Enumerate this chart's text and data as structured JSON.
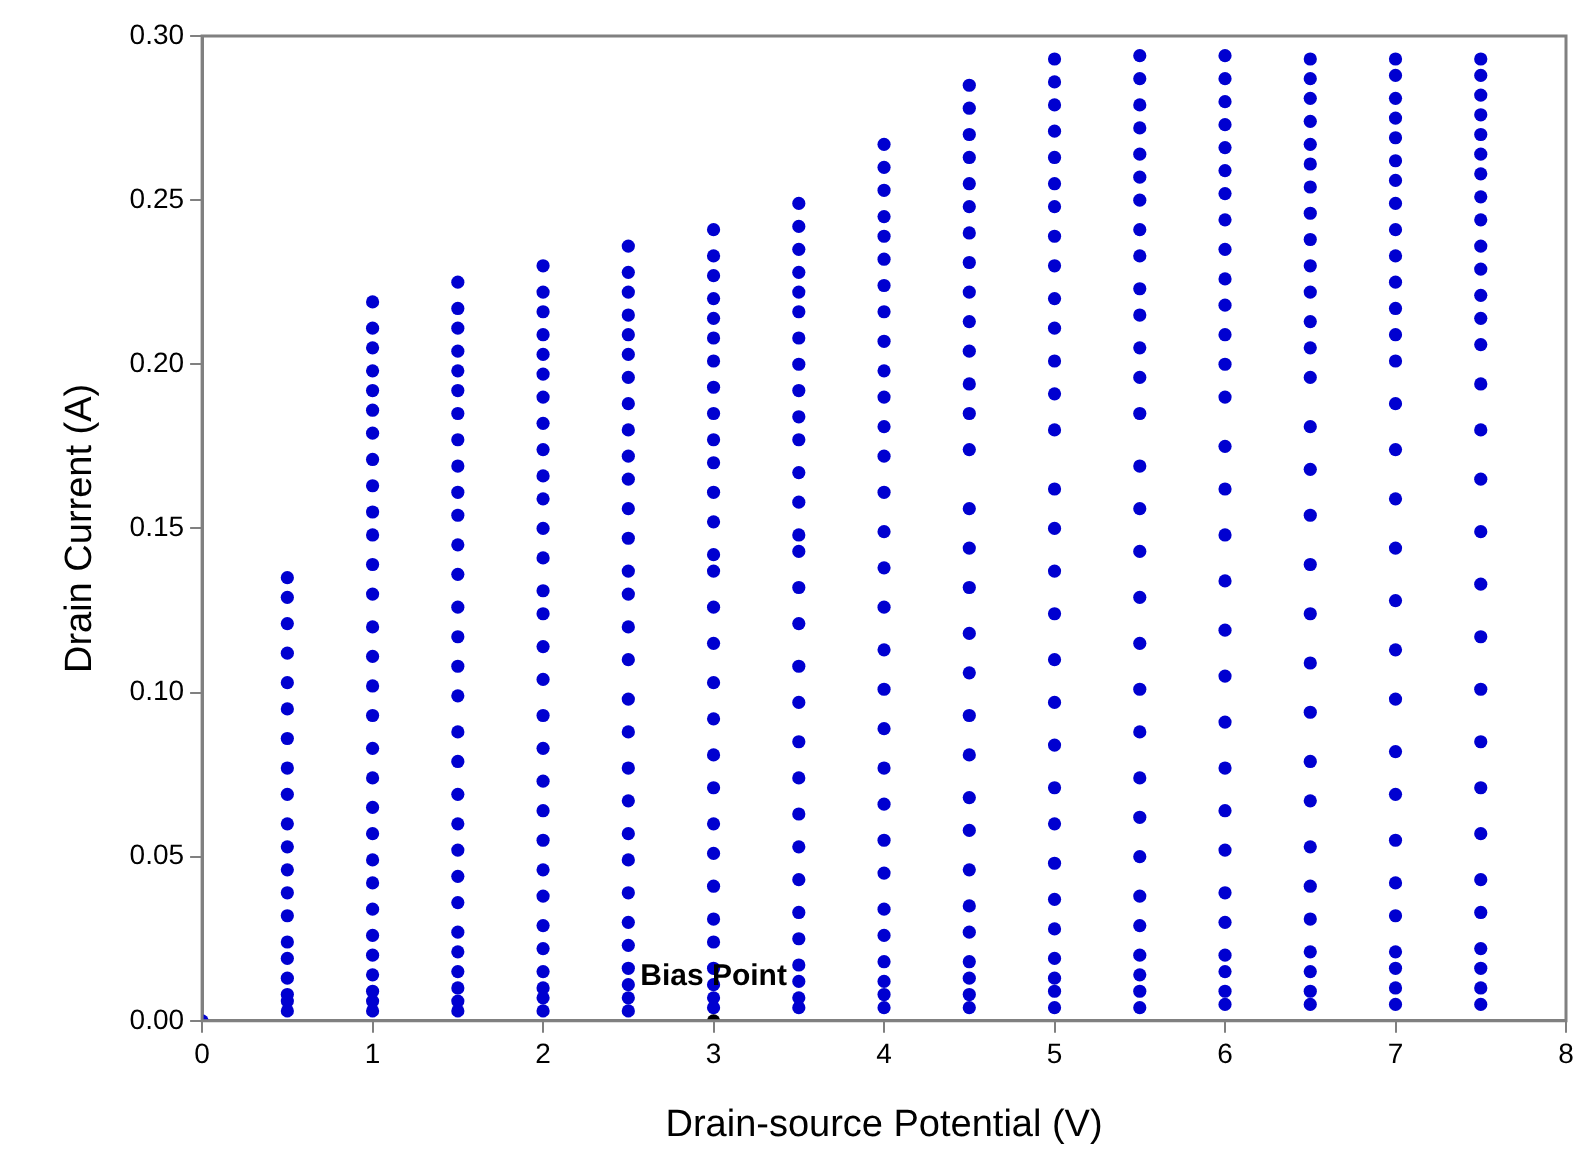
{
  "chart_data": {
    "type": "scatter",
    "xlabel": "Drain-source Potential (V)",
    "ylabel": "Drain Current (A)",
    "marker": "circle",
    "xlim": [
      0,
      8
    ],
    "xticks": [
      0,
      1,
      2,
      3,
      4,
      5,
      6,
      7,
      8
    ],
    "ylim": [
      0,
      0.3
    ],
    "yticks": [
      {
        "value": 0,
        "label": "0.00"
      },
      {
        "value": 0.05,
        "label": "0.05"
      },
      {
        "value": 0.1,
        "label": "0.10"
      },
      {
        "value": 0.15,
        "label": "0.15"
      },
      {
        "value": 0.2,
        "label": "0.20"
      },
      {
        "value": 0.25,
        "label": "0.25"
      },
      {
        "value": 0.3,
        "label": "0.30"
      }
    ],
    "annotations": [
      {
        "text": "Bias Point",
        "x": 3,
        "y": 0
      }
    ],
    "x": [
      0.5,
      1,
      1.5,
      2,
      2.5,
      3,
      3.5,
      4,
      4.5,
      5,
      5.5,
      6,
      6.5,
      7,
      7.5
    ],
    "series": [
      {
        "color": "#0000d0",
        "x": [
          0,
          0.5,
          1,
          1.5,
          2,
          2.5,
          3,
          3.5,
          4,
          4.5,
          5,
          5.5,
          6,
          6.5,
          7,
          7.5
        ],
        "values": [
          0,
          0.003,
          0.003,
          0.003,
          0.003,
          0.003,
          0.004,
          0.004,
          0.004,
          0.004,
          0.004,
          0.004,
          0.005,
          0.005,
          0.005,
          0.005
        ]
      },
      {
        "color": "#0000d0",
        "values": [
          0.006,
          0.006,
          0.006,
          0.007,
          0.007,
          0.007,
          0.007,
          0.008,
          0.008,
          0.009,
          0.009,
          0.009,
          0.009,
          0.01,
          0.01
        ]
      },
      {
        "color": "#0000d0",
        "values": [
          0.008,
          0.009,
          0.01,
          0.01,
          0.011,
          0.011,
          0.012,
          0.012,
          0.013,
          0.013,
          0.014,
          0.015,
          0.015,
          0.016,
          0.016
        ]
      },
      {
        "color": "#0000d0",
        "values": [
          0.013,
          0.014,
          0.015,
          0.015,
          0.016,
          0.016,
          0.017,
          0.018,
          0.018,
          0.019,
          0.02,
          0.02,
          0.021,
          0.021,
          0.022
        ]
      },
      {
        "color": "#0000d0",
        "values": [
          0.019,
          0.02,
          0.021,
          0.022,
          0.023,
          0.024,
          0.025,
          0.026,
          0.027,
          0.028,
          0.029,
          0.03,
          0.031,
          0.032,
          0.033
        ]
      },
      {
        "color": "#0000d0",
        "values": [
          0.024,
          0.026,
          0.027,
          0.029,
          0.03,
          0.031,
          0.033,
          0.034,
          0.035,
          0.037,
          0.038,
          0.039,
          0.041,
          0.042,
          0.043
        ]
      },
      {
        "color": "#0000d0",
        "values": [
          0.032,
          0.034,
          0.036,
          0.038,
          0.039,
          0.041,
          0.043,
          0.045,
          0.046,
          0.048,
          0.05,
          0.052,
          0.053,
          0.055,
          0.057
        ]
      },
      {
        "color": "#0000d0",
        "values": [
          0.039,
          0.042,
          0.044,
          0.046,
          0.049,
          0.051,
          0.053,
          0.055,
          0.058,
          0.06,
          0.062,
          0.064,
          0.067,
          0.069,
          0.071
        ]
      },
      {
        "color": "#0000d0",
        "values": [
          0.046,
          0.049,
          0.052,
          0.055,
          0.057,
          0.06,
          0.063,
          0.066,
          0.068,
          0.071,
          0.074,
          0.077,
          0.079,
          0.082,
          0.085
        ]
      },
      {
        "color": "#0000d0",
        "values": [
          0.053,
          0.057,
          0.06,
          0.064,
          0.067,
          0.071,
          0.074,
          0.077,
          0.081,
          0.084,
          0.088,
          0.091,
          0.094,
          0.098,
          0.101
        ]
      },
      {
        "color": "#0000d0",
        "values": [
          0.06,
          0.065,
          0.069,
          0.073,
          0.077,
          0.081,
          0.085,
          0.089,
          0.093,
          0.097,
          0.101,
          0.105,
          0.109,
          0.113,
          0.117
        ]
      },
      {
        "color": "#0000d0",
        "values": [
          0.069,
          0.074,
          0.079,
          0.083,
          0.088,
          0.092,
          0.097,
          0.101,
          0.106,
          0.11,
          0.115,
          0.119,
          0.124,
          0.128,
          0.133
        ]
      },
      {
        "color": "#0000d0",
        "values": [
          0.077,
          0.083,
          0.088,
          0.093,
          0.098,
          0.103,
          0.108,
          0.113,
          0.118,
          0.124,
          0.129,
          0.134,
          0.139,
          0.144,
          0.149
        ]
      },
      {
        "color": "#0000d0",
        "values": [
          0.086,
          0.093,
          0.099,
          0.104,
          0.11,
          0.115,
          0.121,
          0.126,
          0.132,
          0.137,
          0.143,
          0.148,
          0.154,
          0.159,
          0.165
        ]
      },
      {
        "color": "#0000d0",
        "values": [
          0.095,
          0.102,
          0.108,
          0.114,
          0.12,
          0.126,
          0.132,
          0.138,
          0.144,
          0.15,
          0.156,
          0.162,
          0.168,
          0.174,
          0.18
        ]
      },
      {
        "color": "#0000d0",
        "values": [
          0.103,
          0.111,
          0.117,
          0.124,
          0.13,
          0.137,
          0.143,
          0.149,
          0.156,
          0.162,
          0.169,
          0.175,
          0.181,
          0.188,
          0.194
        ]
      },
      {
        "color": "#0000d0",
        "values": [
          0.112,
          0.12,
          0.126,
          0.131,
          0.137,
          0.142,
          0.148,
          0.161,
          0.174,
          0.18,
          0.185,
          0.19,
          0.196,
          0.201,
          0.206
        ]
      },
      {
        "color": "#0000d0",
        "values": [
          0.121,
          0.13,
          0.136,
          0.141,
          0.147,
          0.152,
          0.158,
          0.172,
          0.185,
          0.191,
          0.196,
          0.2,
          0.205,
          0.209,
          0.214
        ]
      },
      {
        "color": "#0000d0",
        "values": [
          0.129,
          0.139,
          0.145,
          0.15,
          0.156,
          0.161,
          0.167,
          0.181,
          0.194,
          0.201,
          0.205,
          0.209,
          0.213,
          0.217,
          0.221
        ]
      },
      {
        "color": "#0000d0",
        "values": [
          0.135,
          0.148,
          0.154,
          0.159,
          0.165,
          0.17,
          0.177,
          0.19,
          0.204,
          0.211,
          0.215,
          0.218,
          0.222,
          0.225,
          0.229
        ]
      },
      {
        "color": "#0000d0",
        "values": [
          null,
          0.155,
          0.161,
          0.166,
          0.172,
          0.177,
          0.184,
          0.198,
          0.213,
          0.22,
          0.223,
          0.226,
          0.23,
          0.233,
          0.236
        ]
      },
      {
        "color": "#0000d0",
        "values": [
          null,
          0.163,
          0.169,
          0.174,
          0.18,
          0.185,
          0.192,
          0.207,
          0.222,
          0.23,
          0.233,
          0.235,
          0.238,
          0.241,
          0.244
        ]
      },
      {
        "color": "#0000d0",
        "values": [
          null,
          0.171,
          0.177,
          0.182,
          0.188,
          0.193,
          0.2,
          0.216,
          0.231,
          0.239,
          0.241,
          0.244,
          0.246,
          0.249,
          0.251
        ]
      },
      {
        "color": "#0000d0",
        "values": [
          null,
          0.179,
          0.185,
          0.19,
          0.196,
          0.201,
          0.208,
          0.224,
          0.24,
          0.248,
          0.25,
          0.252,
          0.254,
          0.256,
          0.258
        ]
      },
      {
        "color": "#0000d0",
        "values": [
          null,
          0.186,
          0.192,
          0.197,
          0.203,
          0.208,
          0.216,
          0.232,
          0.248,
          0.255,
          0.257,
          0.259,
          0.261,
          0.262,
          0.264
        ]
      },
      {
        "color": "#0000d0",
        "values": [
          null,
          0.192,
          0.198,
          0.203,
          0.209,
          0.214,
          0.222,
          0.239,
          0.255,
          0.263,
          0.264,
          0.266,
          0.267,
          0.269,
          0.27
        ]
      },
      {
        "color": "#0000d0",
        "values": [
          null,
          0.198,
          0.204,
          0.209,
          0.215,
          0.22,
          0.228,
          0.245,
          0.263,
          0.271,
          0.272,
          0.273,
          0.274,
          0.275,
          0.276
        ]
      },
      {
        "color": "#0000d0",
        "values": [
          null,
          0.205,
          0.211,
          0.216,
          0.222,
          0.227,
          0.235,
          0.253,
          0.27,
          0.279,
          0.279,
          0.28,
          0.281,
          0.281,
          0.282
        ]
      },
      {
        "color": "#0000d0",
        "values": [
          null,
          0.211,
          0.217,
          0.222,
          0.228,
          0.233,
          0.242,
          0.26,
          0.278,
          0.286,
          0.287,
          0.287,
          0.287,
          0.288,
          0.288
        ]
      },
      {
        "color": "#0000d0",
        "values": [
          null,
          0.219,
          0.225,
          0.23,
          0.236,
          0.241,
          0.249,
          0.267,
          0.285,
          0.293,
          0.294,
          0.294,
          0.293,
          0.293,
          0.293
        ]
      },
      {
        "color": "#000000",
        "x": [
          3
        ],
        "values": [
          0
        ]
      }
    ]
  }
}
